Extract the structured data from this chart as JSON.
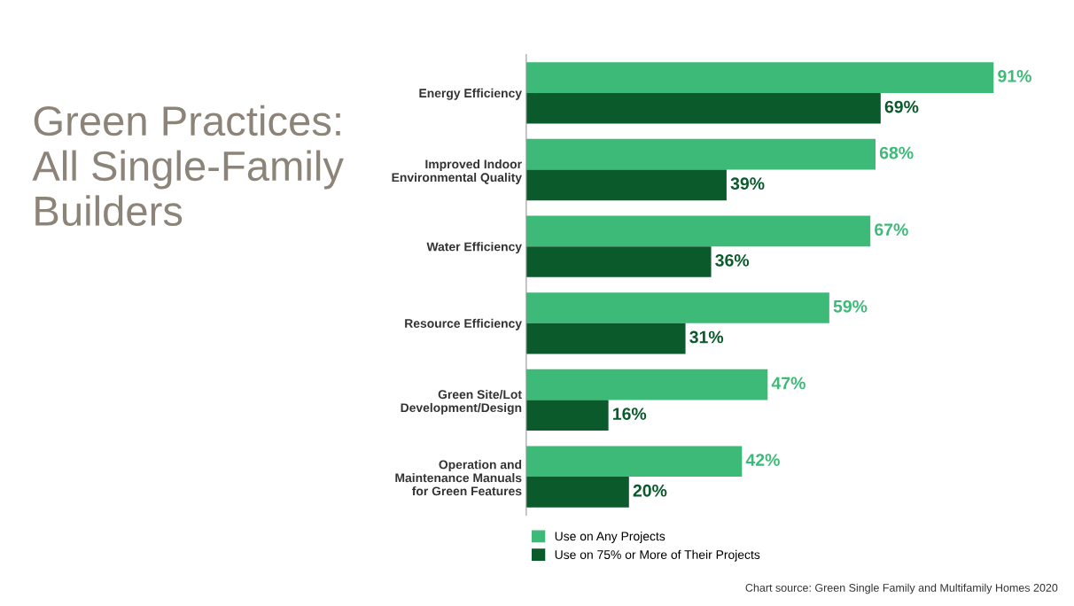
{
  "chart_data": {
    "type": "bar",
    "orientation": "horizontal",
    "title": "Green Practices:\nAll Single-Family\nBuilders",
    "categories": [
      "Energy Efficiency",
      "Improved Indoor\nEnvironmental Quality",
      "Water Efficiency",
      "Resource Efficiency",
      "Green Site/Lot\nDevelopment/Design",
      "Operation and\nMaintenance Manuals\nfor Green Features"
    ],
    "series": [
      {
        "name": "Use on Any Projects",
        "color": "#3dba78",
        "values": [
          91,
          68,
          67,
          59,
          47,
          42
        ],
        "value_labels": [
          "91%",
          "68%",
          "67%",
          "59%",
          "47%",
          "42%"
        ]
      },
      {
        "name": "Use on 75% or More of Their Projects",
        "color": "#0b5a2c",
        "values": [
          69,
          39,
          36,
          31,
          16,
          20
        ],
        "value_labels": [
          "69%",
          "39%",
          "36%",
          "31%",
          "16%",
          "20%"
        ]
      }
    ],
    "legend": "bottom left",
    "grid": false,
    "annotations": [
      "Chart source: Green Single Family and Multifamily Homes 2020"
    ]
  }
}
